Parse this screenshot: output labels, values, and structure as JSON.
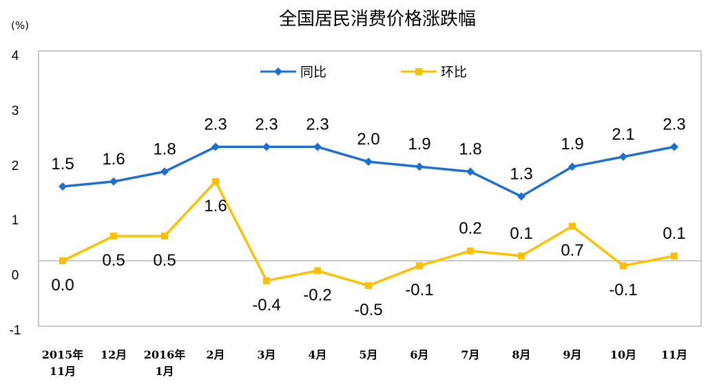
{
  "chart_data": {
    "type": "line",
    "title": "全国居民消费价格涨跌幅",
    "unit_label": "(%)",
    "categories": [
      [
        "2015年",
        "11月"
      ],
      [
        "12月"
      ],
      [
        "2016年",
        "1月"
      ],
      [
        "2月"
      ],
      [
        "3月"
      ],
      [
        "4月"
      ],
      [
        "5月"
      ],
      [
        "6月"
      ],
      [
        "7月"
      ],
      [
        "8月"
      ],
      [
        "9月"
      ],
      [
        "10月"
      ],
      [
        "11月"
      ]
    ],
    "yticks": [
      "4",
      "3",
      "2",
      "1",
      "0",
      "-1"
    ],
    "legend_position": "top-center",
    "series": [
      {
        "name": "同比",
        "color": "#1f6fd1",
        "marker": "diamond",
        "values": [
          1.5,
          1.6,
          1.8,
          2.3,
          2.3,
          2.3,
          2.0,
          1.9,
          1.8,
          1.3,
          1.9,
          2.1,
          2.3
        ],
        "labels": [
          "1.5",
          "1.6",
          "1.8",
          "2.3",
          "2.3",
          "2.3",
          "2.0",
          "1.9",
          "1.8",
          "1.3",
          "1.9",
          "2.1",
          "2.3"
        ]
      },
      {
        "name": "环比",
        "color": "#ffc000",
        "marker": "square",
        "values": [
          0.0,
          0.5,
          0.5,
          1.6,
          -0.4,
          -0.2,
          -0.5,
          -0.1,
          0.2,
          0.1,
          0.7,
          -0.1,
          0.1
        ],
        "labels": [
          "0.0",
          "0.5",
          "0.5",
          "1.6",
          "-0.4",
          "-0.2",
          "-0.5",
          "-0.1",
          "0.2",
          "0.1",
          "0.7",
          "-0.1",
          "0.1"
        ]
      }
    ]
  }
}
